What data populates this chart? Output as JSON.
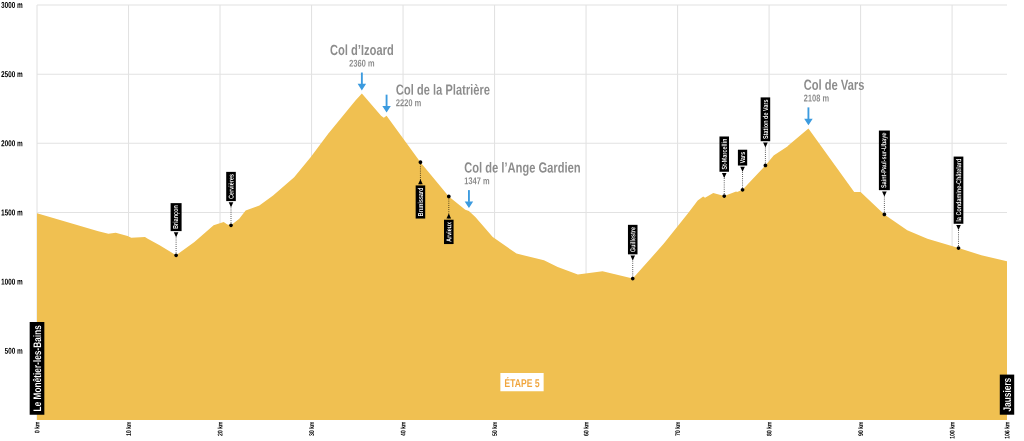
{
  "chart_data": {
    "type": "area",
    "title": "ÉTAPE 5",
    "x": [
      0,
      6.7,
      7.8,
      8.6,
      9.9,
      10.3,
      11.8,
      12.1,
      13.4,
      15.2,
      17.2,
      19.3,
      20.4,
      20.8,
      21.2,
      22.1,
      22.8,
      24.3,
      25.8,
      28.1,
      29.9,
      31.8,
      34.8,
      35.5,
      37.6,
      37.9,
      38.2,
      41.9,
      45.0,
      46.8,
      47.2,
      47.9,
      49.8,
      52.4,
      55.4,
      56.9,
      59.1,
      61.8,
      65.1,
      68.5,
      71.1,
      72.2,
      72.8,
      73.0,
      73.9,
      75.1,
      76.4,
      76.5,
      77.1,
      79.6,
      80.5,
      82.0,
      82.1,
      84.3,
      89.3,
      90.0,
      92.6,
      95.1,
      97.3,
      100.7,
      103.2,
      106
    ],
    "values": [
      1495,
      1364,
      1347,
      1354,
      1330,
      1318,
      1323,
      1311,
      1263,
      1190,
      1287,
      1407,
      1431,
      1414,
      1407,
      1455,
      1515,
      1551,
      1623,
      1755,
      1900,
      2068,
      2309,
      2360,
      2200,
      2184,
      2200,
      1864,
      1616,
      1520,
      1510,
      1467,
      1323,
      1203,
      1154,
      1106,
      1051,
      1075,
      1022,
      1275,
      1491,
      1587,
      1616,
      1607,
      1640,
      1619,
      1652,
      1648,
      1664,
      1840,
      1912,
      1977,
      1984,
      2108,
      1648,
      1648,
      1486,
      1371,
      1311,
      1243,
      1190,
      1147
    ],
    "color": "#f0c051",
    "xlim": [
      0,
      106
    ],
    "xticks": [
      {
        "value": 0,
        "label": "0 km"
      },
      {
        "value": 10,
        "label": "10 km"
      },
      {
        "value": 20,
        "label": "20 km"
      },
      {
        "value": 30,
        "label": "30 km"
      },
      {
        "value": 40,
        "label": "40 km"
      },
      {
        "value": 50,
        "label": "50 km"
      },
      {
        "value": 60,
        "label": "60 km"
      },
      {
        "value": 70,
        "label": "70 km"
      },
      {
        "value": 80,
        "label": "80 km"
      },
      {
        "value": 90,
        "label": "90 km"
      },
      {
        "value": 100,
        "label": "100 km"
      },
      {
        "value": 106,
        "label": "106 km"
      }
    ],
    "ylim": [
      0,
      3000
    ],
    "yticks": [
      {
        "value": 500,
        "label": "500 m"
      },
      {
        "value": 1000,
        "label": "1000 m"
      },
      {
        "value": 1500,
        "label": "1500 m"
      },
      {
        "value": 2000,
        "label": "2000 m"
      },
      {
        "value": 2500,
        "label": "2500 m"
      },
      {
        "value": 3000,
        "label": "3000 m"
      }
    ],
    "grid": true,
    "annotations": [
      {
        "text": "Le Monêtier-les-Bains",
        "x": 0
      },
      {
        "text": "Briançon",
        "x": 15.2,
        "y": 1190
      },
      {
        "text": "Cervières",
        "x": 21.2,
        "y": 1407
      },
      {
        "text": "Col d’Izoard",
        "x": 35.5,
        "y": 2360
      },
      {
        "text": "2360 m",
        "x": 35.5,
        "y": 2360
      },
      {
        "text": "Col de la Platrière",
        "x": 38.2,
        "y": 2200
      },
      {
        "text": "2220 m",
        "x": 38.2,
        "y": 2200
      },
      {
        "text": "Brunissard",
        "x": 41.9,
        "y": 1864
      },
      {
        "text": "Arvieux",
        "x": 45.0,
        "y": 1616
      },
      {
        "text": "Col de l’Ange Gardien",
        "x": 47.2,
        "y": 1510
      },
      {
        "text": "1347 m",
        "x": 47.2,
        "y": 1510
      },
      {
        "text": "Guillestre",
        "x": 65.1,
        "y": 1022
      },
      {
        "text": "St-Marcellin",
        "x": 75.1,
        "y": 1619
      },
      {
        "text": "Vars",
        "x": 77.1,
        "y": 1664
      },
      {
        "text": "Station de Vars",
        "x": 79.6,
        "y": 1840
      },
      {
        "text": "Col de Vars",
        "x": 84.3,
        "y": 2108
      },
      {
        "text": "2108 m",
        "x": 84.3,
        "y": 2108
      },
      {
        "text": "Saint-Paul-sur-Ubaye",
        "x": 92.6,
        "y": 1486
      },
      {
        "text": "la Condamine-Châtelard",
        "x": 100.7,
        "y": 1243
      },
      {
        "text": "Jausiers",
        "x": 106
      }
    ]
  }
}
